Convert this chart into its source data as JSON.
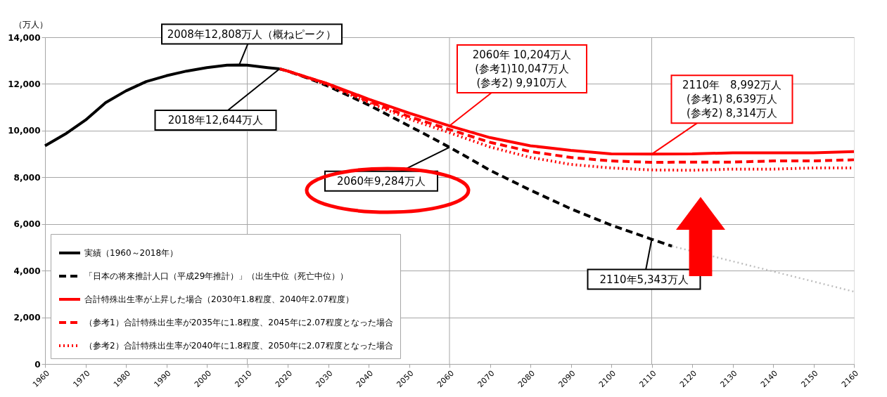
{
  "chart_data": {
    "type": "line",
    "ylabel": "（万人）",
    "xlim": [
      1960,
      2160
    ],
    "xticks": [
      1960,
      1970,
      1980,
      1990,
      2000,
      2010,
      2020,
      2030,
      2040,
      2050,
      2060,
      2070,
      2080,
      2090,
      2100,
      2110,
      2120,
      2130,
      2140,
      2150,
      2160
    ],
    "ylim": [
      0,
      14000
    ],
    "yticks": [
      0,
      {
        "value": 2000,
        "label": "2,000"
      },
      {
        "value": 4000,
        "label": "4,000"
      },
      {
        "value": 6000,
        "label": "6,000"
      },
      {
        "value": 8000,
        "label": "8,000"
      },
      {
        "value": 10000,
        "label": "10,000"
      },
      {
        "value": 12000,
        "label": "12,000"
      },
      {
        "value": 14000,
        "label": "14,000"
      }
    ],
    "grid": "y",
    "legend": "bottom left",
    "series": [
      {
        "name": "実績（1960～2018年）",
        "color": "#000000",
        "line_style": "solid",
        "x": [
          1960,
          1965,
          1970,
          1973,
          1975,
          1980,
          1985,
          1990,
          1995,
          2000,
          2005,
          2008,
          2010,
          2015,
          2018
        ],
        "values": [
          9350,
          9850,
          10450,
          10900,
          11200,
          11700,
          12100,
          12350,
          12550,
          12700,
          12800,
          12808,
          12800,
          12700,
          12644
        ]
      },
      {
        "name": "「日本の将来推計人口（平成29年推計）」（出生中位（死亡中位））",
        "color": "#000000",
        "line_style": "dashed",
        "x": [
          2018,
          2020,
          2025,
          2030,
          2035,
          2040,
          2045,
          2050,
          2055,
          2060,
          2065,
          2070,
          2080,
          2090,
          2100,
          2110,
          2115
        ],
        "values": [
          12644,
          12550,
          12250,
          11900,
          11500,
          11100,
          10650,
          10200,
          9750,
          9284,
          8800,
          8300,
          7450,
          6650,
          5950,
          5343,
          5050
        ]
      },
      {
        "color": "#bfbfbf",
        "line_style": "dotted",
        "x": [
          2115,
          2130,
          2145,
          2160
        ],
        "values": [
          5050,
          4400,
          3750,
          3100
        ]
      },
      {
        "name": "合計特殊出生率が上昇した場合（2030年1.8程度、2040年2.07程度）",
        "color": "#ff0000",
        "line_style": "solid",
        "x": [
          2018,
          2020,
          2030,
          2040,
          2050,
          2060,
          2070,
          2080,
          2090,
          2100,
          2110,
          2120,
          2130,
          2140,
          2150,
          2160
        ],
        "values": [
          12644,
          12550,
          12000,
          11350,
          10750,
          10204,
          9700,
          9350,
          9150,
          9000,
          8992,
          9000,
          9050,
          9050,
          9050,
          9100
        ]
      },
      {
        "name": "（参考1）合計特殊出生率が2035年に1.8程度、2045年に2.07程度となった場合",
        "color": "#ff0000",
        "line_style": "dashed",
        "x": [
          2020,
          2030,
          2040,
          2050,
          2060,
          2070,
          2080,
          2090,
          2100,
          2110,
          2120,
          2130,
          2140,
          2150,
          2160
        ],
        "values": [
          12550,
          12000,
          11250,
          10600,
          10047,
          9500,
          9100,
          8850,
          8700,
          8639,
          8650,
          8650,
          8700,
          8700,
          8750
        ]
      },
      {
        "name": "（参考2）合計特殊出生率が2040年に1.8程度、2050年に2.07程度となった場合",
        "color": "#ff0000",
        "line_style": "dotted",
        "x": [
          2020,
          2030,
          2040,
          2050,
          2060,
          2070,
          2080,
          2090,
          2100,
          2110,
          2120,
          2130,
          2140,
          2150,
          2160
        ],
        "values": [
          12550,
          11950,
          11200,
          10500,
          9910,
          9300,
          8850,
          8550,
          8400,
          8314,
          8300,
          8350,
          8350,
          8400,
          8400
        ]
      }
    ],
    "ref_lines": [
      {
        "axis": "x",
        "value": 2010,
        "color": "#a6a6a6"
      },
      {
        "axis": "x",
        "value": 2060,
        "color": "#a6a6a6"
      },
      {
        "axis": "x",
        "value": 2110,
        "color": "#a6a6a6"
      }
    ],
    "annotations": [
      {
        "text": "2008年12,808万人（概ねピーク）",
        "x": 2008,
        "y": 12808
      },
      {
        "text": "2018年12,644万人",
        "x": 2018,
        "y": 12644
      },
      {
        "text": "2060年9,284万人",
        "x": 2060,
        "y": 9284
      },
      {
        "text": "2060年 10,204万人\n(参考1)10,047万人\n(参考2) 9,910万人",
        "x": 2060,
        "y": 10204
      },
      {
        "text": "2110年　8,992万人\n(参考1) 8,639万人\n(参考2) 8,314万人",
        "x": 2110,
        "y": 8992
      },
      {
        "text": "2110年5,343万人",
        "x": 2110,
        "y": 5343
      }
    ]
  }
}
